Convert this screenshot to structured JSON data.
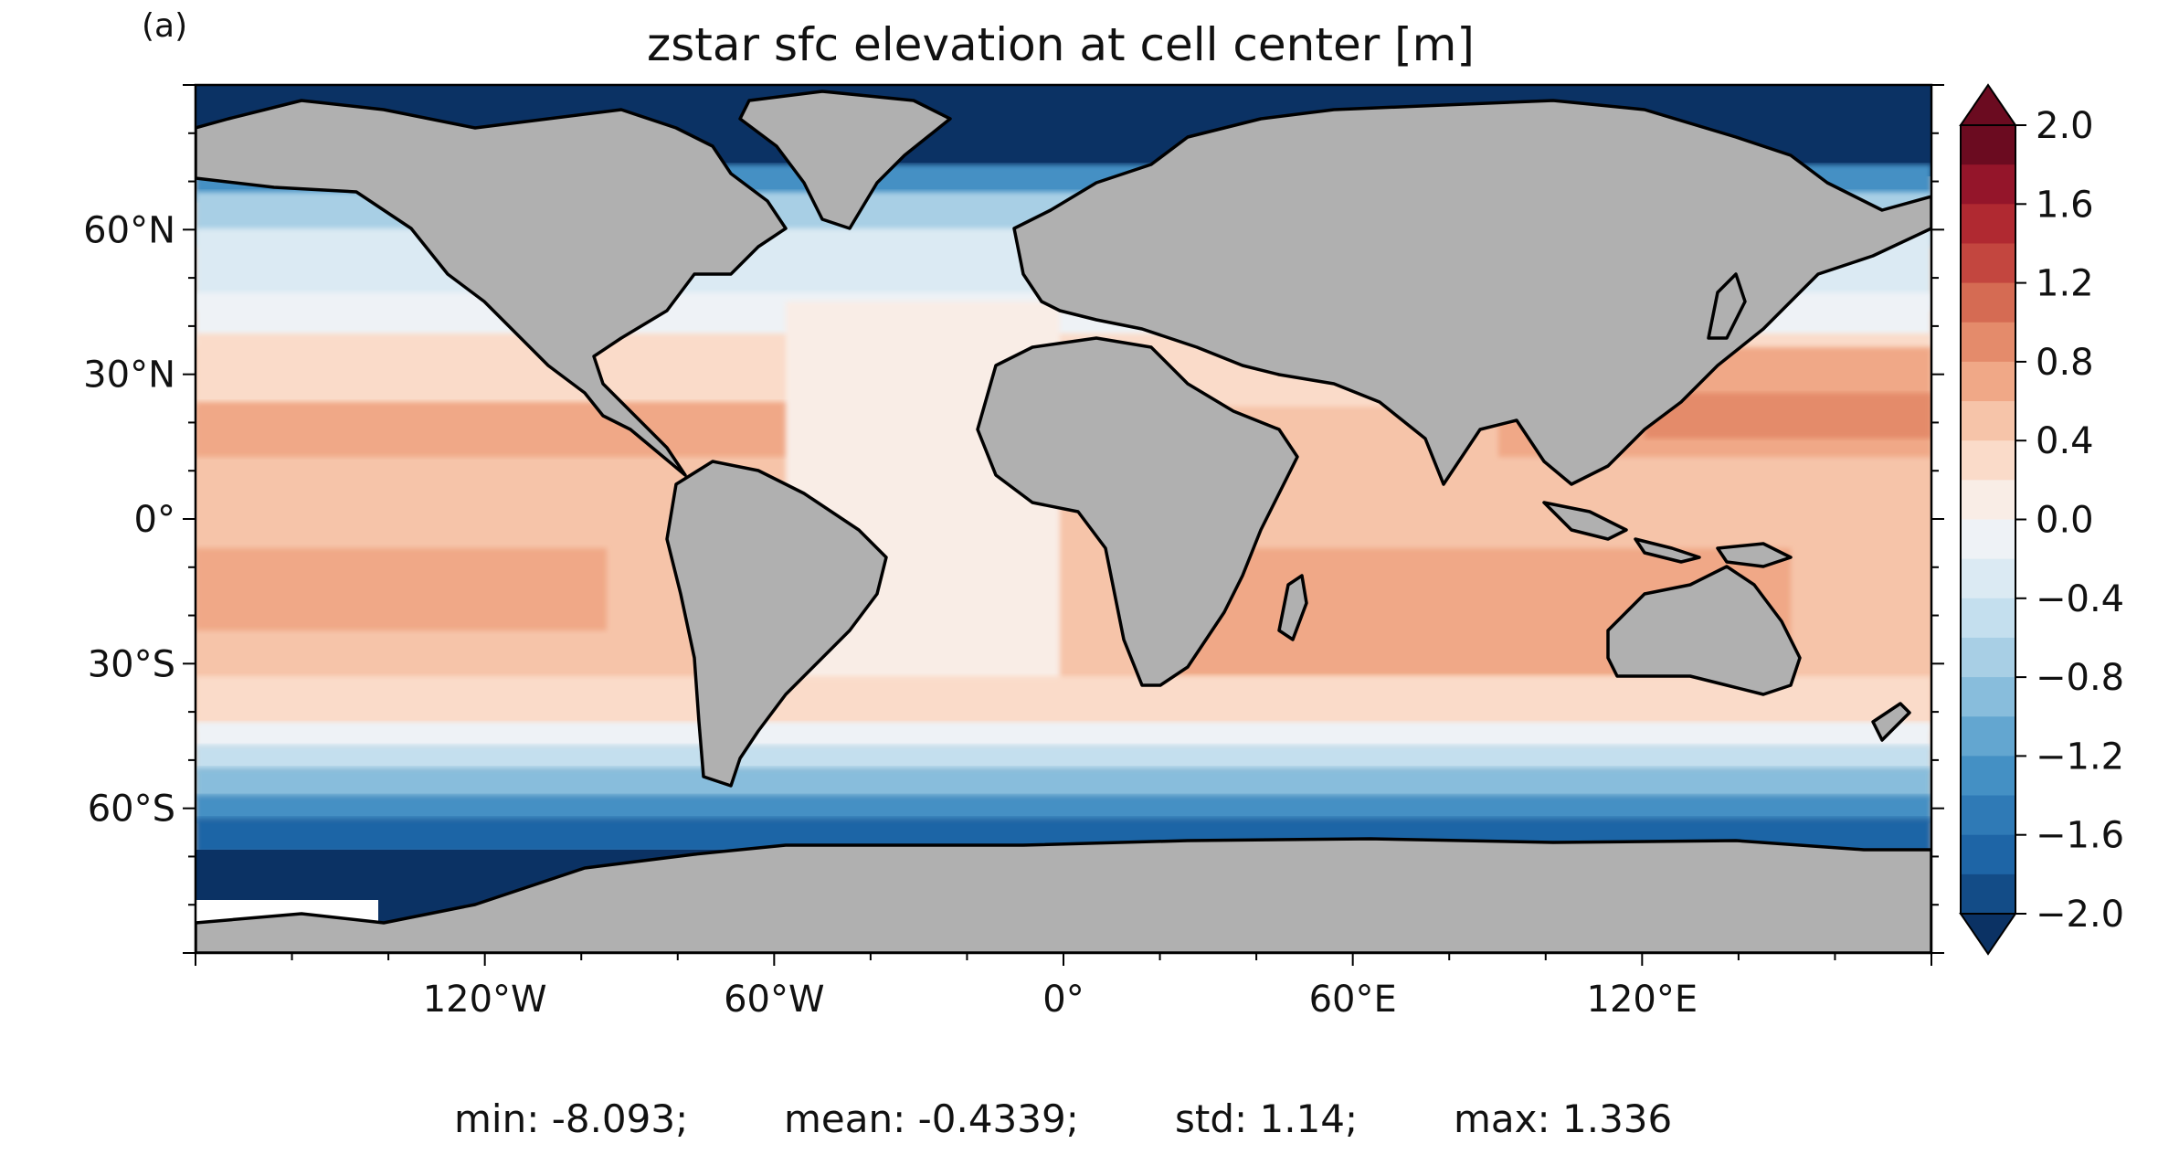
{
  "panel_label": "(a)",
  "title": "zstar sfc elevation at cell center [m]",
  "map": {
    "projection": "PlateCarree",
    "lon_ticks": [
      "120°W",
      "60°W",
      "0°",
      "60°E",
      "120°E"
    ],
    "lat_ticks": [
      "60°N",
      "30°N",
      "0°",
      "30°S",
      "60°S"
    ],
    "land_color": "#b0b0b0",
    "coastline_color": "#000000"
  },
  "colorbar": {
    "cmap": "RdBu_r",
    "extend": "both",
    "tick_labels": [
      "2.0",
      "1.6",
      "1.2",
      "0.8",
      "0.4",
      "0.0",
      "−0.4",
      "−0.8",
      "−1.2",
      "−1.6",
      "−2.0"
    ],
    "levels_min": -2.0,
    "levels_max": 2.0,
    "level_step": 0.2,
    "colors": [
      "#0b3264",
      "#134c87",
      "#1e65a6",
      "#2f7ab6",
      "#4490c4",
      "#63a6d0",
      "#88bddc",
      "#a8cfe5",
      "#c4dfee",
      "#dbeaf3",
      "#eef2f6",
      "#f9ede6",
      "#fadbc9",
      "#f6c4a9",
      "#f0a887",
      "#e48b6b",
      "#d56b53",
      "#c3463f",
      "#b02931",
      "#94152a",
      "#6b0b20"
    ]
  },
  "stats": {
    "min": "min: -8.093;",
    "mean": "mean: -0.4339;",
    "std": "std: 1.14;",
    "max": "max: 1.336"
  }
}
